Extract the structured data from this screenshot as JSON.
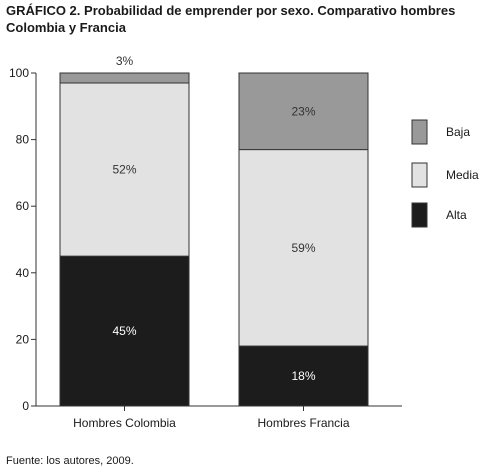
{
  "title_lead": "GRÁFICO 2.",
  "title_rest": " Probabilidad de emprender por sexo. Comparativo hombres Colombia y Francia",
  "source": "Fuente: los autores, 2009.",
  "colors": {
    "Alta": "#1c1c1c",
    "Media": "#e2e2e2",
    "Baja": "#999999",
    "frame": "#333333"
  },
  "chart_data": {
    "type": "bar",
    "stacked": true,
    "title": "GRÁFICO 2. Probabilidad de emprender por sexo. Comparativo hombres Colombia y Francia",
    "categories": [
      "Hombres Colombia",
      "Hombres Francia"
    ],
    "series": [
      {
        "name": "Alta",
        "values": [
          45,
          18
        ],
        "labels": [
          "45%",
          "18%"
        ]
      },
      {
        "name": "Media",
        "values": [
          52,
          59
        ],
        "labels": [
          "52%",
          "59%"
        ]
      },
      {
        "name": "Baja",
        "values": [
          3,
          23
        ],
        "labels": [
          "3%",
          "23%"
        ]
      }
    ],
    "ylim": [
      0,
      100
    ],
    "yticks": [
      0,
      20,
      40,
      60,
      80,
      100
    ],
    "xlabel": "",
    "ylabel": "",
    "legend": {
      "placement": "right",
      "order": [
        "Baja",
        "Media",
        "Alta"
      ]
    },
    "grid": false
  }
}
